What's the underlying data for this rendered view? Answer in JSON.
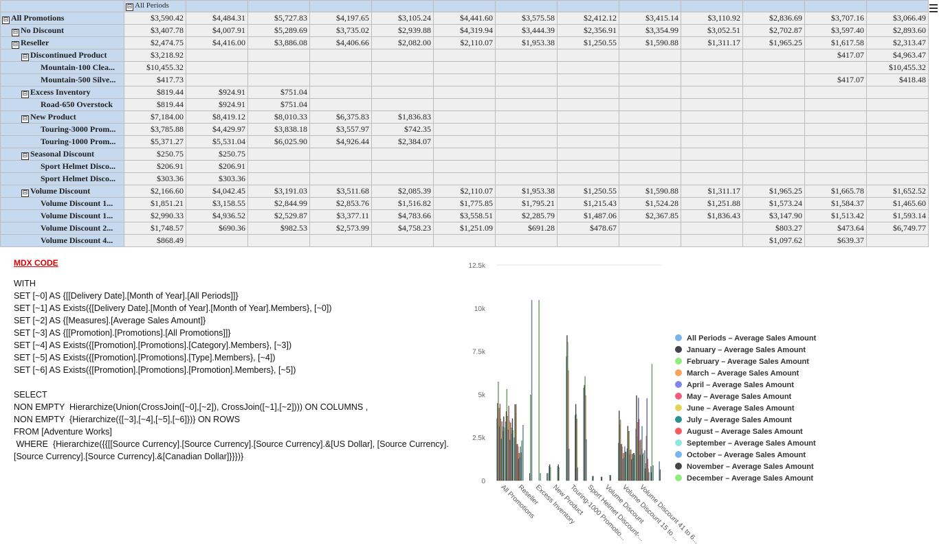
{
  "pivot": {
    "column_header": "All Periods",
    "rows": [
      {
        "label": "All Promotions",
        "level": 0,
        "toggle": "⊟",
        "values": [
          "$3,590.42",
          "$4,484.31",
          "$5,727.83",
          "$4,197.65",
          "$3,105.24",
          "$4,441.60",
          "$3,575.58",
          "$2,412.12",
          "$3,415.14",
          "$3,110.92",
          "$2,836.69",
          "$3,707.16",
          "$3,066.49"
        ]
      },
      {
        "label": "No Discount",
        "level": 1,
        "toggle": "⊟",
        "values": [
          "$3,407.78",
          "$4,007.91",
          "$5,289.69",
          "$3,735.02",
          "$2,939.88",
          "$4,319.94",
          "$3,444.39",
          "$2,356.91",
          "$3,354.99",
          "$3,052.51",
          "$2,702.87",
          "$3,597.40",
          "$2,893.60"
        ]
      },
      {
        "label": "Reseller",
        "level": 1,
        "toggle": "⊟",
        "values": [
          "$2,474.75",
          "$4,416.00",
          "$3,886.08",
          "$4,406.66",
          "$2,082.00",
          "$2,110.07",
          "$1,953.38",
          "$1,250.55",
          "$1,590.88",
          "$1,311.17",
          "$1,965.25",
          "$1,617.58",
          "$2,313.47"
        ]
      },
      {
        "label": "Discontinued Product",
        "level": 2,
        "toggle": "⊟",
        "values": [
          "$3,218.92",
          "",
          "",
          "",
          "",
          "",
          "",
          "",
          "",
          "",
          "",
          "$417.07",
          "$4,963.47"
        ]
      },
      {
        "label": "Mountain-100 Clea...",
        "level": 3,
        "toggle": "",
        "values": [
          "$10,455.32",
          "",
          "",
          "",
          "",
          "",
          "",
          "",
          "",
          "",
          "",
          "",
          "$10,455.32"
        ]
      },
      {
        "label": "Mountain-500 Silve...",
        "level": 3,
        "toggle": "",
        "values": [
          "$417.73",
          "",
          "",
          "",
          "",
          "",
          "",
          "",
          "",
          "",
          "",
          "$417.07",
          "$418.48"
        ]
      },
      {
        "label": "Excess Inventory",
        "level": 2,
        "toggle": "⊟",
        "values": [
          "$819.44",
          "$924.91",
          "$751.04",
          "",
          "",
          "",
          "",
          "",
          "",
          "",
          "",
          "",
          ""
        ]
      },
      {
        "label": "Road-650 Overstock",
        "level": 3,
        "toggle": "",
        "values": [
          "$819.44",
          "$924.91",
          "$751.04",
          "",
          "",
          "",
          "",
          "",
          "",
          "",
          "",
          "",
          ""
        ]
      },
      {
        "label": "New Product",
        "level": 2,
        "toggle": "⊟",
        "values": [
          "$7,184.00",
          "$8,419.12",
          "$8,010.33",
          "$6,375.83",
          "$1,836.83",
          "",
          "",
          "",
          "",
          "",
          "",
          "",
          ""
        ]
      },
      {
        "label": "Touring-3000 Prom...",
        "level": 3,
        "toggle": "",
        "values": [
          "$3,785.88",
          "$4,429.97",
          "$3,838.18",
          "$3,557.97",
          "$742.35",
          "",
          "",
          "",
          "",
          "",
          "",
          "",
          ""
        ]
      },
      {
        "label": "Touring-1000 Prom...",
        "level": 3,
        "toggle": "",
        "values": [
          "$5,371.27",
          "$5,531.04",
          "$6,025.90",
          "$4,926.44",
          "$2,384.07",
          "",
          "",
          "",
          "",
          "",
          "",
          "",
          ""
        ]
      },
      {
        "label": "Seasonal Discount",
        "level": 2,
        "toggle": "⊟",
        "values": [
          "$250.75",
          "$250.75",
          "",
          "",
          "",
          "",
          "",
          "",
          "",
          "",
          "",
          "",
          ""
        ]
      },
      {
        "label": "Sport Helmet Disco...",
        "level": 3,
        "toggle": "",
        "values": [
          "$206.91",
          "$206.91",
          "",
          "",
          "",
          "",
          "",
          "",
          "",
          "",
          "",
          "",
          ""
        ]
      },
      {
        "label": "Sport Helmet Disco...",
        "level": 3,
        "toggle": "",
        "values": [
          "$303.36",
          "$303.36",
          "",
          "",
          "",
          "",
          "",
          "",
          "",
          "",
          "",
          "",
          ""
        ]
      },
      {
        "label": "Volume Discount",
        "level": 2,
        "toggle": "⊟",
        "values": [
          "$2,166.60",
          "$4,042.45",
          "$3,191.03",
          "$3,511.68",
          "$2,085.39",
          "$2,110.07",
          "$1,953.38",
          "$1,250.55",
          "$1,590.88",
          "$1,311.17",
          "$1,965.25",
          "$1,665.78",
          "$1,652.52"
        ]
      },
      {
        "label": "Volume Discount 1...",
        "level": 3,
        "toggle": "",
        "values": [
          "$1,851.21",
          "$3,158.55",
          "$2,844.99",
          "$2,853.76",
          "$1,516.82",
          "$1,775.85",
          "$1,795.21",
          "$1,215.43",
          "$1,524.28",
          "$1,251.88",
          "$1,573.24",
          "$1,584.37",
          "$1,465.60"
        ]
      },
      {
        "label": "Volume Discount 1...",
        "level": 3,
        "toggle": "",
        "values": [
          "$2,990.33",
          "$4,936.52",
          "$2,529.87",
          "$3,377.11",
          "$4,783.66",
          "$3,558.51",
          "$2,285.79",
          "$1,487.06",
          "$2,367.85",
          "$1,836.43",
          "$3,147.90",
          "$1,513.42",
          "$1,593.14"
        ]
      },
      {
        "label": "Volume Discount 2...",
        "level": 3,
        "toggle": "",
        "values": [
          "$1,748.57",
          "$690.36",
          "$982.53",
          "$2,573.99",
          "$4,758.23",
          "$1,251.09",
          "$691.28",
          "$478.67",
          "",
          "",
          "$803.27",
          "$473.64",
          "$6,749.77"
        ]
      },
      {
        "label": "Volume Discount 4...",
        "level": 3,
        "toggle": "",
        "values": [
          "$868.49",
          "",
          "",
          "",
          "",
          "",
          "",
          "",
          "",
          "",
          "$1,097.62",
          "$639.37",
          ""
        ]
      }
    ]
  },
  "mdx": {
    "title": "MDX CODE",
    "code": "WITH\nSET [~0] AS {[[Delivery Date].[Month of Year].[All Periods]]}\nSET [~1] AS Exists({[Delivery Date].[Month of Year].[Month of Year].Members}, [~0])\nSET [~2] AS {[Measures].[Average Sales Amount]}\nSET [~3] AS {[[Promotion].[Promotions].[All Promotions]]}\nSET [~4] AS Exists({[Promotion].[Promotions].[Category].Members}, [~3])\nSET [~5] AS Exists({[Promotion].[Promotions].[Type].Members}, [~4])\nSET [~6] AS Exists({[Promotion].[Promotions].[Promotion].Members}, [~5])\n\nSELECT\nNON EMPTY  Hierarchize(Union(CrossJoin([~0],[~2]), CrossJoin([~1],[~2]))) ON COLUMNS ,\nNON EMPTY  {Hierarchize({[~3],[~4],[~5],[~6]})} ON ROWS\nFROM [Adventure Works]\n WHERE  {Hierarchize({{[[Source Currency].[Source Currency].[Source Currency].&[US Dollar], [Source Currency].[Source Currency].[Source Currency].&[Canadian Dollar]}}})}"
  },
  "chart_data": {
    "type": "bar",
    "yticks": [
      "0",
      "2.5k",
      "5k",
      "7.5k",
      "10k",
      "12.5k"
    ],
    "ylim": [
      0,
      12500
    ],
    "x_labels": [
      "All Promotions",
      "Reseller",
      "Excess Inventory",
      "New Product",
      "Touring-1000 Promotio...",
      "Sport Helmet Discount-...",
      "Volume Discount",
      "Volume Discount 15 to ...",
      "Volume Discount 41 to 6..."
    ],
    "categories": [
      "All Promotions",
      "No Discount",
      "Reseller",
      "Discontinued Product",
      "Mountain-100 Clea...",
      "Mountain-500 Silve...",
      "Excess Inventory",
      "Road-650 Overstock",
      "New Product",
      "Touring-3000 Prom...",
      "Touring-1000 Prom...",
      "Seasonal Discount",
      "Sport Helmet Disco...",
      "Sport Helmet Disco...",
      "Volume Discount",
      "Volume Discount 1...",
      "Volume Discount 1...",
      "Volume Discount 2...",
      "Volume Discount 4..."
    ],
    "legend_position": "right",
    "series": [
      {
        "name": "All Periods – Average Sales Amount",
        "color": "#7cb5ec",
        "values": [
          3590.42,
          3407.78,
          2474.75,
          3218.92,
          10455.32,
          417.73,
          819.44,
          819.44,
          7184.0,
          3785.88,
          5371.27,
          250.75,
          206.91,
          303.36,
          2166.6,
          1851.21,
          2990.33,
          1748.57,
          868.49
        ]
      },
      {
        "name": "January – Average Sales Amount",
        "color": "#434348",
        "values": [
          4484.31,
          4007.91,
          4416.0,
          null,
          null,
          null,
          924.91,
          924.91,
          8419.12,
          4429.97,
          5531.04,
          250.75,
          206.91,
          303.36,
          4042.45,
          3158.55,
          4936.52,
          690.36,
          null
        ]
      },
      {
        "name": "February – Average Sales Amount",
        "color": "#90ed7d",
        "values": [
          5727.83,
          5289.69,
          3886.08,
          null,
          null,
          null,
          751.04,
          751.04,
          8010.33,
          3838.18,
          6025.9,
          null,
          null,
          null,
          3191.03,
          2844.99,
          2529.87,
          982.53,
          null
        ]
      },
      {
        "name": "March – Average Sales Amount",
        "color": "#f7a35c",
        "values": [
          4197.65,
          3735.02,
          4406.66,
          null,
          null,
          null,
          null,
          null,
          6375.83,
          3557.97,
          4926.44,
          null,
          null,
          null,
          3511.68,
          2853.76,
          3377.11,
          2573.99,
          null
        ]
      },
      {
        "name": "April – Average Sales Amount",
        "color": "#8085e9",
        "values": [
          3105.24,
          2939.88,
          2082.0,
          null,
          null,
          null,
          null,
          null,
          1836.83,
          742.35,
          2384.07,
          null,
          null,
          null,
          2085.39,
          1516.82,
          4783.66,
          4758.23,
          null
        ]
      },
      {
        "name": "May – Average Sales Amount",
        "color": "#f15c80",
        "values": [
          4441.6,
          4319.94,
          2110.07,
          null,
          null,
          null,
          null,
          null,
          null,
          null,
          null,
          null,
          null,
          null,
          2110.07,
          1775.85,
          3558.51,
          1251.09,
          null
        ]
      },
      {
        "name": "June – Average Sales Amount",
        "color": "#e4d354",
        "values": [
          3575.58,
          3444.39,
          1953.38,
          null,
          null,
          null,
          null,
          null,
          null,
          null,
          null,
          null,
          null,
          null,
          1953.38,
          1795.21,
          2285.79,
          691.28,
          null
        ]
      },
      {
        "name": "July – Average Sales Amount",
        "color": "#2b908f",
        "values": [
          2412.12,
          2356.91,
          1250.55,
          null,
          null,
          null,
          null,
          null,
          null,
          null,
          null,
          null,
          null,
          null,
          1250.55,
          1215.43,
          1487.06,
          478.67,
          null
        ]
      },
      {
        "name": "August – Average Sales Amount",
        "color": "#f45b5b",
        "values": [
          3415.14,
          3354.99,
          1590.88,
          null,
          null,
          null,
          null,
          null,
          null,
          null,
          null,
          null,
          null,
          null,
          1590.88,
          1524.28,
          2367.85,
          null,
          null
        ]
      },
      {
        "name": "September – Average Sales Amount",
        "color": "#91e8e1",
        "values": [
          3110.92,
          3052.51,
          1311.17,
          null,
          null,
          null,
          null,
          null,
          null,
          null,
          null,
          null,
          null,
          null,
          1311.17,
          1251.88,
          1836.43,
          null,
          null
        ]
      },
      {
        "name": "October – Average Sales Amount",
        "color": "#7cb5ec",
        "values": [
          2836.69,
          2702.87,
          1965.25,
          null,
          null,
          null,
          null,
          null,
          null,
          null,
          null,
          null,
          null,
          null,
          1965.25,
          1573.24,
          3147.9,
          803.27,
          1097.62
        ]
      },
      {
        "name": "November – Average Sales Amount",
        "color": "#434348",
        "values": [
          3707.16,
          3597.4,
          1617.58,
          417.07,
          null,
          417.07,
          null,
          null,
          null,
          null,
          null,
          null,
          null,
          null,
          1665.78,
          1584.37,
          1513.42,
          473.64,
          639.37
        ]
      },
      {
        "name": "December – Average Sales Amount",
        "color": "#90ed7d",
        "values": [
          3066.49,
          2893.6,
          2313.47,
          4963.47,
          10455.32,
          418.48,
          null,
          null,
          null,
          null,
          null,
          null,
          null,
          null,
          1652.52,
          1465.6,
          1593.14,
          6749.77,
          null
        ]
      }
    ]
  }
}
